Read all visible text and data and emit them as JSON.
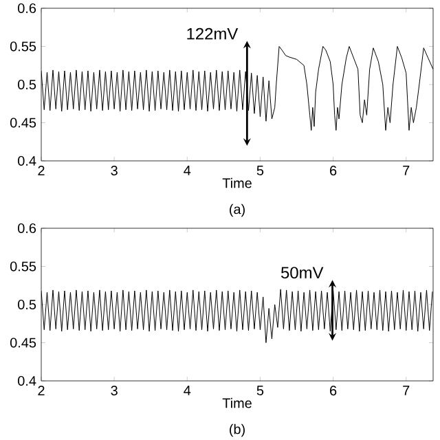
{
  "chart_data": [
    {
      "type": "line",
      "xlabel": "Time",
      "xlim": [
        2,
        7.37
      ],
      "ylim": [
        0.4,
        0.6
      ],
      "xticks": [
        2,
        3,
        4,
        5,
        6,
        7
      ],
      "yticks": [
        0.4,
        0.45,
        0.5,
        0.55,
        0.6
      ],
      "annotations": [
        "(a)",
        {
          "text": "122mV",
          "x": 4.82,
          "y": 0.551
        }
      ],
      "series": [
        {
          "color": "#000000",
          "x": [
            2,
            2.04,
            2.08,
            2.12,
            2.16,
            2.2,
            2.24,
            2.28,
            2.32,
            2.36,
            2.4,
            2.44,
            2.48,
            2.52,
            2.56,
            2.6,
            2.64,
            2.68,
            2.72,
            2.76,
            2.8,
            2.84,
            2.88,
            2.92,
            2.96,
            3,
            3.04,
            3.08,
            3.12,
            3.16,
            3.2,
            3.24,
            3.28,
            3.32,
            3.36,
            3.4,
            3.44,
            3.48,
            3.52,
            3.56,
            3.6,
            3.64,
            3.68,
            3.72,
            3.76,
            3.8,
            3.84,
            3.88,
            3.92,
            3.96,
            4,
            4.04,
            4.08,
            4.12,
            4.16,
            4.2,
            4.24,
            4.28,
            4.32,
            4.36,
            4.4,
            4.44,
            4.48,
            4.52,
            4.56,
            4.6,
            4.64,
            4.68,
            4.72,
            4.76,
            4.8,
            4.84,
            4.88,
            4.92,
            4.96,
            5,
            5.04,
            5.08,
            5.12,
            5.16,
            5.2,
            5.22,
            5.26,
            5.3,
            5.35,
            5.4,
            5.5,
            5.6,
            5.64,
            5.68,
            5.7,
            5.72,
            5.74,
            5.76,
            5.8,
            5.86,
            5.9,
            5.96,
            6,
            6.02,
            6.04,
            6.06,
            6.08,
            6.12,
            6.18,
            6.22,
            6.28,
            6.34,
            6.37,
            6.4,
            6.43,
            6.46,
            6.5,
            6.55,
            6.62,
            6.68,
            6.72,
            6.75,
            6.78,
            6.82,
            6.88,
            6.94,
            7,
            7.04,
            7.07,
            7.1,
            7.14,
            7.18,
            7.24,
            7.3,
            7.37
          ],
          "values": [
            0.518,
            0.467,
            0.516,
            0.466,
            0.519,
            0.468,
            0.517,
            0.465,
            0.518,
            0.467,
            0.516,
            0.468,
            0.519,
            0.466,
            0.517,
            0.467,
            0.518,
            0.465,
            0.516,
            0.468,
            0.519,
            0.466,
            0.517,
            0.467,
            0.518,
            0.468,
            0.516,
            0.465,
            0.519,
            0.467,
            0.517,
            0.466,
            0.518,
            0.468,
            0.516,
            0.467,
            0.519,
            0.465,
            0.517,
            0.466,
            0.518,
            0.468,
            0.516,
            0.467,
            0.519,
            0.466,
            0.517,
            0.465,
            0.518,
            0.467,
            0.516,
            0.468,
            0.519,
            0.466,
            0.517,
            0.467,
            0.518,
            0.465,
            0.516,
            0.468,
            0.519,
            0.466,
            0.517,
            0.467,
            0.518,
            0.468,
            0.516,
            0.465,
            0.519,
            0.467,
            0.517,
            0.466,
            0.515,
            0.462,
            0.512,
            0.458,
            0.51,
            0.452,
            0.505,
            0.455,
            0.47,
            0.5,
            0.55,
            0.545,
            0.538,
            0.536,
            0.533,
            0.525,
            0.5,
            0.46,
            0.44,
            0.47,
            0.445,
            0.49,
            0.52,
            0.55,
            0.545,
            0.53,
            0.5,
            0.46,
            0.44,
            0.47,
            0.455,
            0.5,
            0.535,
            0.55,
            0.535,
            0.52,
            0.46,
            0.45,
            0.48,
            0.46,
            0.52,
            0.548,
            0.53,
            0.5,
            0.44,
            0.47,
            0.45,
            0.5,
            0.55,
            0.535,
            0.515,
            0.44,
            0.47,
            0.45,
            0.47,
            0.5,
            0.548,
            0.535,
            0.52
          ]
        },
        {
          "type": "line",
          "color": "#000000",
          "marker": "cross",
          "x": [
            4.82,
            4.82
          ],
          "values": [
            0.426,
            0.551
          ]
        }
      ]
    },
    {
      "type": "line",
      "xlabel": "Time",
      "xlim": [
        2,
        7.37
      ],
      "ylim": [
        0.4,
        0.6
      ],
      "xticks": [
        2,
        3,
        4,
        5,
        6,
        7
      ],
      "yticks": [
        0.4,
        0.45,
        0.5,
        0.55,
        0.6
      ],
      "annotations": [
        "(b)",
        {
          "text": "50mV",
          "x": 5.99,
          "y": 0.526
        }
      ],
      "series": [
        {
          "color": "#000000",
          "x": [
            2,
            2.04,
            2.08,
            2.12,
            2.16,
            2.2,
            2.24,
            2.28,
            2.32,
            2.36,
            2.4,
            2.44,
            2.48,
            2.52,
            2.56,
            2.6,
            2.64,
            2.68,
            2.72,
            2.76,
            2.8,
            2.84,
            2.88,
            2.92,
            2.96,
            3,
            3.04,
            3.08,
            3.12,
            3.16,
            3.2,
            3.24,
            3.28,
            3.32,
            3.36,
            3.4,
            3.44,
            3.48,
            3.52,
            3.56,
            3.6,
            3.64,
            3.68,
            3.72,
            3.76,
            3.8,
            3.84,
            3.88,
            3.92,
            3.96,
            4,
            4.04,
            4.08,
            4.12,
            4.16,
            4.2,
            4.24,
            4.28,
            4.32,
            4.36,
            4.4,
            4.44,
            4.48,
            4.52,
            4.56,
            4.6,
            4.64,
            4.68,
            4.72,
            4.76,
            4.8,
            4.84,
            4.88,
            4.92,
            4.96,
            5,
            5.04,
            5.08,
            5.12,
            5.16,
            5.2,
            5.24,
            5.28,
            5.32,
            5.36,
            5.4,
            5.44,
            5.48,
            5.52,
            5.56,
            5.6,
            5.64,
            5.68,
            5.72,
            5.76,
            5.8,
            5.84,
            5.88,
            5.92,
            5.96,
            6,
            6.04,
            6.08,
            6.12,
            6.16,
            6.2,
            6.24,
            6.28,
            6.32,
            6.36,
            6.4,
            6.44,
            6.48,
            6.52,
            6.56,
            6.6,
            6.64,
            6.68,
            6.72,
            6.76,
            6.8,
            6.84,
            6.88,
            6.92,
            6.96,
            7,
            7.04,
            7.08,
            7.12,
            7.16,
            7.2,
            7.24,
            7.28,
            7.32,
            7.36
          ],
          "values": [
            0.518,
            0.467,
            0.516,
            0.466,
            0.519,
            0.468,
            0.517,
            0.465,
            0.518,
            0.467,
            0.516,
            0.468,
            0.519,
            0.466,
            0.517,
            0.467,
            0.518,
            0.465,
            0.516,
            0.468,
            0.519,
            0.466,
            0.517,
            0.467,
            0.518,
            0.468,
            0.516,
            0.465,
            0.519,
            0.467,
            0.517,
            0.466,
            0.518,
            0.468,
            0.516,
            0.467,
            0.519,
            0.465,
            0.517,
            0.466,
            0.518,
            0.468,
            0.516,
            0.467,
            0.519,
            0.466,
            0.517,
            0.465,
            0.518,
            0.467,
            0.516,
            0.468,
            0.519,
            0.466,
            0.517,
            0.467,
            0.518,
            0.465,
            0.516,
            0.468,
            0.519,
            0.466,
            0.517,
            0.467,
            0.518,
            0.468,
            0.516,
            0.465,
            0.519,
            0.467,
            0.517,
            0.466,
            0.518,
            0.468,
            0.516,
            0.467,
            0.51,
            0.45,
            0.495,
            0.455,
            0.5,
            0.47,
            0.52,
            0.468,
            0.519,
            0.466,
            0.517,
            0.467,
            0.518,
            0.465,
            0.516,
            0.468,
            0.519,
            0.466,
            0.517,
            0.467,
            0.518,
            0.468,
            0.516,
            0.465,
            0.519,
            0.467,
            0.517,
            0.466,
            0.518,
            0.468,
            0.516,
            0.467,
            0.519,
            0.465,
            0.517,
            0.466,
            0.518,
            0.468,
            0.516,
            0.467,
            0.519,
            0.466,
            0.517,
            0.465,
            0.518,
            0.467,
            0.516,
            0.468,
            0.519,
            0.466,
            0.517,
            0.467,
            0.518,
            0.465,
            0.516,
            0.468,
            0.519,
            0.466,
            0.517
          ]
        },
        {
          "type": "line",
          "color": "#000000",
          "marker": "cross",
          "x": [
            5.99,
            5.99
          ],
          "values": [
            0.459,
            0.526
          ]
        }
      ]
    }
  ]
}
